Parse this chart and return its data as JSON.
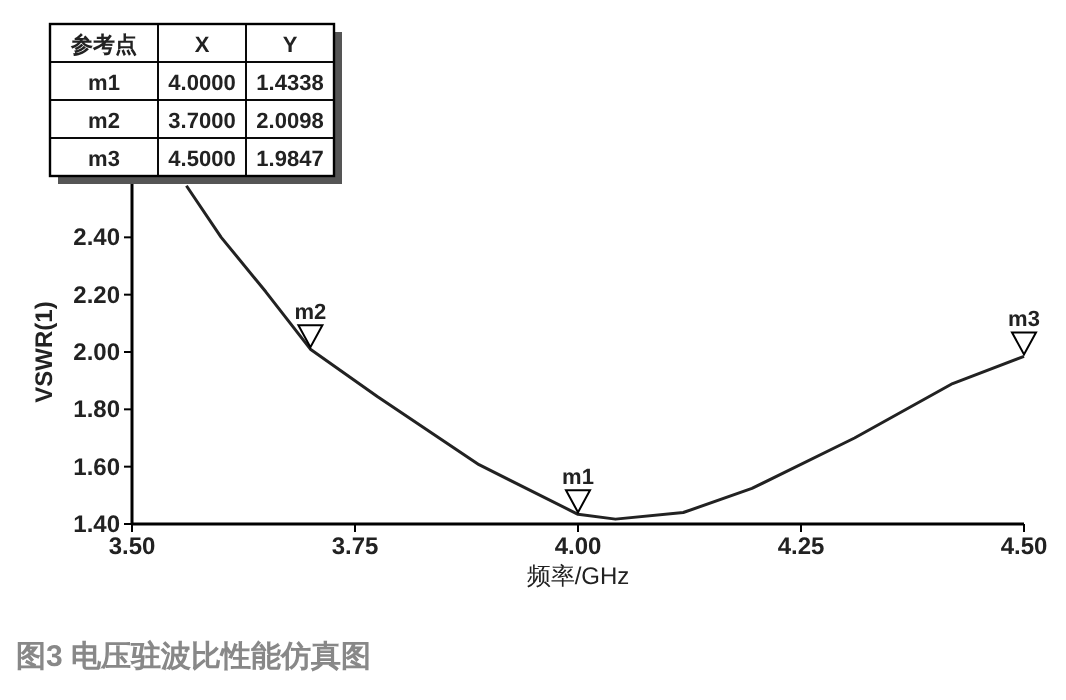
{
  "chart_data": {
    "type": "line",
    "title": "图3  电压驻波比性能仿真图",
    "xlabel": "频率/GHz",
    "ylabel": "VSWR(1)",
    "x": [
      3.561,
      3.6,
      3.65,
      3.7,
      3.775,
      3.889,
      4.0,
      4.042,
      4.118,
      4.195,
      4.31,
      4.42,
      4.5
    ],
    "series": [
      {
        "color": "#222222",
        "values": [
          2.58,
          2.4,
          2.21,
          2.0098,
          1.845,
          1.607,
          1.4338,
          1.417,
          1.44,
          1.524,
          1.7,
          1.89,
          1.9847
        ]
      }
    ],
    "xlim": [
      3.5,
      4.5
    ],
    "ylim": [
      1.4,
      2.6
    ],
    "xticks": [
      {
        "value": 3.5,
        "label": "3.50"
      },
      {
        "value": 3.75,
        "label": "3.75"
      },
      {
        "value": 4.0,
        "label": "4.00"
      },
      {
        "value": 4.25,
        "label": "4.25"
      },
      {
        "value": 4.5,
        "label": "4.50"
      }
    ],
    "yticks": [
      {
        "value": 1.4,
        "label": "1.40"
      },
      {
        "value": 1.6,
        "label": "1.60"
      },
      {
        "value": 1.8,
        "label": "1.80"
      },
      {
        "value": 2.0,
        "label": "2.00"
      },
      {
        "value": 2.2,
        "label": "2.20"
      },
      {
        "value": 2.4,
        "label": "2.40"
      }
    ],
    "grid": false,
    "annotations": [
      {
        "text": "m1",
        "x": 4.0,
        "y": 1.4338
      },
      {
        "text": "m2",
        "x": 3.7,
        "y": 2.0098
      },
      {
        "text": "m3",
        "x": 4.5,
        "y": 1.9847
      },
      "参考点",
      "X",
      "Y",
      "m1",
      "4.0000",
      "1.4338",
      "m2",
      "3.7000",
      "2.0098",
      "m3",
      "4.5000",
      "1.9847"
    ]
  }
}
